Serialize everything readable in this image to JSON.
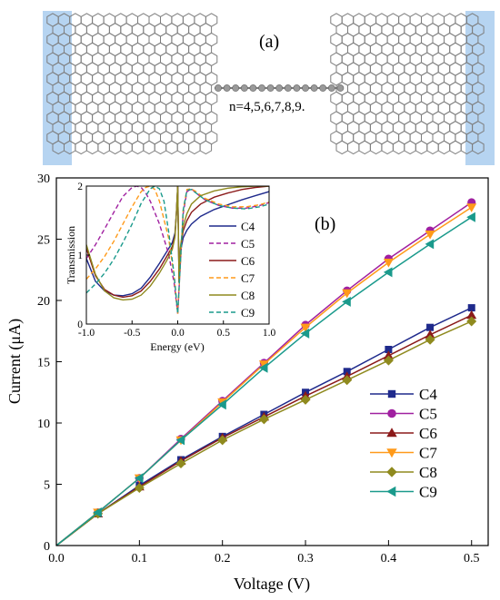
{
  "panel_a": {
    "label": "(a)",
    "annotation": "n=4,5,6,7,8,9."
  },
  "chart_data": [
    {
      "type": "line",
      "panel_label": "(b)",
      "xlabel": "Voltage (V)",
      "ylabel": "Current (μA)",
      "xlim": [
        0.0,
        0.52
      ],
      "ylim": [
        0,
        30
      ],
      "xticks": [
        "0.0",
        "0.1",
        "0.2",
        "0.3",
        "0.4",
        "0.5"
      ],
      "yticks": [
        "0",
        "5",
        "10",
        "15",
        "20",
        "25",
        "30"
      ],
      "legend_position": "lower-right",
      "x": [
        0,
        0.05,
        0.1,
        0.15,
        0.2,
        0.25,
        0.3,
        0.35,
        0.4,
        0.45,
        0.5
      ],
      "series": [
        {
          "name": "C4",
          "color": "#1f2a8c",
          "marker": "square",
          "values": [
            0,
            2.6,
            4.9,
            7.0,
            8.9,
            10.7,
            12.5,
            14.2,
            16.0,
            17.8,
            19.4
          ]
        },
        {
          "name": "C5",
          "color": "#a020a0",
          "marker": "circle",
          "values": [
            0,
            2.7,
            5.5,
            8.7,
            11.8,
            14.9,
            18.0,
            20.8,
            23.4,
            25.7,
            28.0
          ]
        },
        {
          "name": "C6",
          "color": "#8b1a1a",
          "marker": "triangle-up",
          "values": [
            0,
            2.6,
            4.8,
            6.9,
            8.8,
            10.5,
            12.2,
            13.8,
            15.5,
            17.2,
            18.8
          ]
        },
        {
          "name": "C7",
          "color": "#ff9a1a",
          "marker": "triangle-down",
          "values": [
            0,
            2.7,
            5.5,
            8.6,
            11.7,
            14.8,
            17.8,
            20.6,
            23.1,
            25.4,
            27.6
          ]
        },
        {
          "name": "C8",
          "color": "#8f8a1e",
          "marker": "diamond",
          "values": [
            0,
            2.6,
            4.7,
            6.7,
            8.6,
            10.3,
            11.9,
            13.5,
            15.1,
            16.8,
            18.3
          ]
        },
        {
          "name": "C9",
          "color": "#1a9a8c",
          "marker": "triangle-left",
          "values": [
            0,
            2.7,
            5.5,
            8.6,
            11.5,
            14.5,
            17.3,
            19.9,
            22.3,
            24.6,
            26.8
          ]
        }
      ]
    },
    {
      "type": "line",
      "panel_label": "inset",
      "xlabel": "Energy (eV)",
      "ylabel": "Transmission",
      "xlim": [
        -1.0,
        1.0
      ],
      "ylim": [
        0,
        2
      ],
      "xticks": [
        "-1.0",
        "-0.5",
        "0.0",
        "0.5",
        "1.0"
      ],
      "yticks": [
        "0",
        "1",
        "2"
      ],
      "legend_position": "right",
      "series": [
        {
          "name": "C4",
          "color": "#1f2a8c",
          "dash": "solid",
          "x": [
            -1.0,
            -0.9,
            -0.8,
            -0.7,
            -0.6,
            -0.5,
            -0.4,
            -0.3,
            -0.2,
            -0.12,
            -0.06,
            -0.03,
            -0.015,
            0.0,
            0.015,
            0.03,
            0.06,
            0.1,
            0.15,
            0.25,
            0.4,
            0.55,
            0.7,
            0.85,
            1.0
          ],
          "values": [
            0.95,
            0.62,
            0.48,
            0.42,
            0.41,
            0.44,
            0.52,
            0.68,
            0.88,
            1.05,
            1.18,
            1.32,
            1.6,
            2.0,
            0.6,
            1.05,
            1.25,
            1.36,
            1.45,
            1.56,
            1.66,
            1.73,
            1.8,
            1.86,
            1.92
          ]
        },
        {
          "name": "C5",
          "color": "#a020a0",
          "dash": "dashed",
          "x": [
            -1.0,
            -0.9,
            -0.8,
            -0.7,
            -0.6,
            -0.5,
            -0.45,
            -0.4,
            -0.35,
            -0.3,
            -0.2,
            -0.1,
            -0.04,
            0.0,
            0.03,
            0.06,
            0.1,
            0.15,
            0.2,
            0.3,
            0.45,
            0.6,
            0.75,
            0.9,
            1.0
          ],
          "values": [
            0.95,
            1.15,
            1.38,
            1.62,
            1.85,
            1.98,
            2.0,
            1.98,
            1.9,
            1.78,
            1.45,
            1.02,
            0.6,
            0.15,
            0.9,
            1.6,
            1.92,
            1.96,
            1.9,
            1.8,
            1.72,
            1.68,
            1.68,
            1.72,
            1.76
          ]
        },
        {
          "name": "C6",
          "color": "#8b1a1a",
          "dash": "solid",
          "x": [
            -1.0,
            -0.9,
            -0.8,
            -0.7,
            -0.6,
            -0.5,
            -0.4,
            -0.3,
            -0.2,
            -0.12,
            -0.06,
            -0.03,
            -0.015,
            0.0,
            0.015,
            0.03,
            0.06,
            0.1,
            0.15,
            0.25,
            0.4,
            0.55,
            0.7,
            0.85,
            1.0
          ],
          "values": [
            1.1,
            0.7,
            0.5,
            0.42,
            0.39,
            0.41,
            0.48,
            0.62,
            0.8,
            0.98,
            1.12,
            1.28,
            1.6,
            2.0,
            0.6,
            1.1,
            1.35,
            1.5,
            1.62,
            1.74,
            1.84,
            1.9,
            1.95,
            1.98,
            2.0
          ]
        },
        {
          "name": "C7",
          "color": "#ff9a1a",
          "dash": "dashed",
          "x": [
            -1.0,
            -0.9,
            -0.8,
            -0.7,
            -0.6,
            -0.5,
            -0.4,
            -0.35,
            -0.3,
            -0.25,
            -0.2,
            -0.1,
            -0.04,
            0.0,
            0.03,
            0.06,
            0.1,
            0.15,
            0.2,
            0.3,
            0.45,
            0.6,
            0.75,
            0.9,
            1.0
          ],
          "values": [
            0.65,
            0.8,
            0.98,
            1.2,
            1.45,
            1.7,
            1.92,
            1.98,
            2.0,
            1.95,
            1.78,
            1.25,
            0.7,
            0.15,
            0.9,
            1.65,
            1.95,
            1.96,
            1.92,
            1.82,
            1.74,
            1.7,
            1.7,
            1.73,
            1.77
          ]
        },
        {
          "name": "C8",
          "color": "#8f8a1e",
          "dash": "solid",
          "x": [
            -1.0,
            -0.9,
            -0.8,
            -0.7,
            -0.6,
            -0.5,
            -0.4,
            -0.3,
            -0.2,
            -0.12,
            -0.06,
            -0.03,
            -0.015,
            0.0,
            0.015,
            0.03,
            0.06,
            0.1,
            0.15,
            0.25,
            0.4,
            0.55,
            0.7,
            0.85,
            1.0
          ],
          "values": [
            1.15,
            0.72,
            0.48,
            0.38,
            0.35,
            0.36,
            0.42,
            0.55,
            0.74,
            0.92,
            1.08,
            1.26,
            1.6,
            2.0,
            0.6,
            1.12,
            1.42,
            1.6,
            1.74,
            1.86,
            1.93,
            1.97,
            1.99,
            2.0,
            2.0
          ]
        },
        {
          "name": "C9",
          "color": "#1a9a8c",
          "dash": "dashed",
          "x": [
            -1.0,
            -0.9,
            -0.8,
            -0.7,
            -0.6,
            -0.5,
            -0.4,
            -0.3,
            -0.25,
            -0.2,
            -0.15,
            -0.1,
            -0.04,
            0.0,
            0.03,
            0.06,
            0.1,
            0.15,
            0.2,
            0.3,
            0.45,
            0.6,
            0.75,
            0.9,
            1.0
          ],
          "values": [
            0.45,
            0.58,
            0.74,
            0.94,
            1.18,
            1.45,
            1.75,
            1.96,
            2.0,
            1.96,
            1.78,
            1.35,
            0.72,
            0.15,
            0.9,
            1.65,
            1.94,
            1.95,
            1.9,
            1.8,
            1.72,
            1.68,
            1.67,
            1.7,
            1.74
          ]
        }
      ]
    }
  ]
}
